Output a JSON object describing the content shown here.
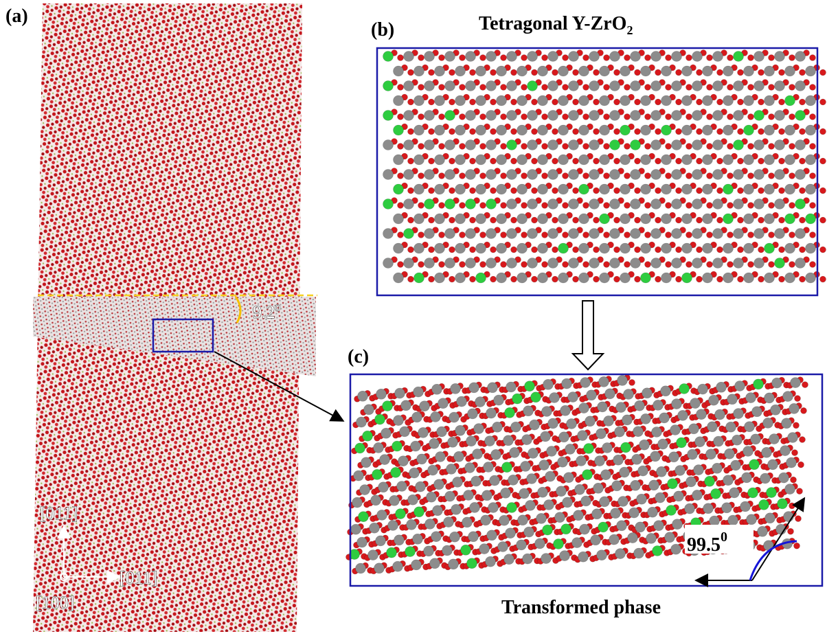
{
  "panels": [
    {
      "label": "(a)"
    },
    {
      "label": "(b)",
      "title": {
        "text": "Tetragonal Y-ZrO",
        "subscript": "2"
      }
    },
    {
      "label": "(c)",
      "caption": "Transformed phase"
    }
  ],
  "annotations": {
    "tilt_angle": {
      "text": "9.2",
      "superscript": "0"
    },
    "cell_angle": {
      "text": "99.5",
      "superscript": "0"
    }
  },
  "axes": {
    "vertical": "[011]",
    "horizontal": "[011]",
    "normal": "[100]"
  }
}
